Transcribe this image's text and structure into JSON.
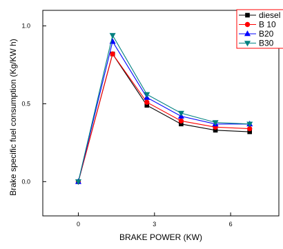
{
  "chart_data": {
    "type": "line",
    "xlabel": "BRAKE POWER (KW)",
    "ylabel": "Brake specific fuel consumption (Kg/KW h)",
    "xlim": [
      -1.4,
      7.9
    ],
    "ylim": [
      -0.22,
      1.1
    ],
    "xticks": [
      0,
      3,
      6
    ],
    "yticks": [
      0.0,
      0.5,
      1.0
    ],
    "x_tick_labels": [
      "0",
      "3",
      "6"
    ],
    "y_tick_labels": [
      "0.0",
      "0.5",
      "1.0"
    ],
    "grid": false,
    "legend_position": "top-right",
    "x": [
      0,
      1.35,
      2.7,
      4.05,
      5.4,
      6.75
    ],
    "series": [
      {
        "name": "diesel",
        "color": "#000000",
        "marker": "square",
        "values": [
          0.0,
          0.82,
          0.49,
          0.37,
          0.33,
          0.32
        ]
      },
      {
        "name": "B 10",
        "color": "#ff0000",
        "marker": "circle",
        "values": [
          0.0,
          0.82,
          0.51,
          0.39,
          0.35,
          0.34
        ]
      },
      {
        "name": "B20",
        "color": "#0000ff",
        "marker": "triangle-up",
        "values": [
          0.0,
          0.9,
          0.54,
          0.42,
          0.37,
          0.37
        ]
      },
      {
        "name": "B30",
        "color": "#008080",
        "marker": "triangle-down",
        "values": [
          0.0,
          0.94,
          0.56,
          0.44,
          0.38,
          0.37
        ]
      }
    ]
  },
  "legend_frame_color": "#ff0000"
}
